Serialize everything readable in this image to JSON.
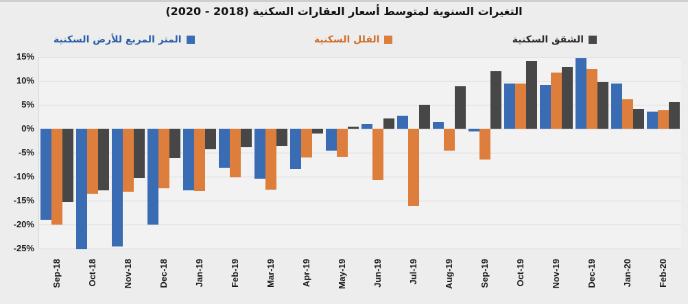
{
  "title": "التغيرات السنوية لمتوسط أسعار العقارات السكنية (2018 - 2020)",
  "legend": [
    {
      "label": "المتر المربع للأرض السكنية",
      "color": "#3A6CB4",
      "text_color": "#2B5FA8"
    },
    {
      "label": "الفلل السكنية",
      "color": "#DD7E3D",
      "text_color": "#D06F2A"
    },
    {
      "label": "الشقق السكنية",
      "color": "#474747",
      "text_color": "#2E2E2E"
    }
  ],
  "chart_data": {
    "type": "bar",
    "title": "التغيرات السنوية لمتوسط أسعار العقارات السكنية (2018 - 2020)",
    "categories": [
      "Sep-18",
      "Oct-18",
      "Nov-18",
      "Dec-18",
      "Jan-19",
      "Feb-19",
      "Mar-19",
      "Apr-19",
      "May-19",
      "Jun-19",
      "Jul-19",
      "Aug-19",
      "Sep-19",
      "Oct-19",
      "Nov-19",
      "Dec-19",
      "Jan-20",
      "Feb-20"
    ],
    "series": [
      {
        "name": "المتر المربع للأرض السكنية",
        "color": "#3A6CB4",
        "values": [
          -19.0,
          -25.2,
          -24.5,
          -20.0,
          -12.9,
          -8.1,
          -10.4,
          -8.4,
          -4.6,
          1.0,
          2.7,
          1.4,
          -0.6,
          9.4,
          9.1,
          14.7,
          9.4,
          3.6
        ]
      },
      {
        "name": "الفلل السكنية",
        "color": "#DD7E3D",
        "values": [
          -20.0,
          -13.6,
          -13.1,
          -12.4,
          -13.0,
          -10.1,
          -12.7,
          -6.0,
          -5.8,
          -10.7,
          -16.2,
          -4.6,
          -6.4,
          9.5,
          11.7,
          12.4,
          6.1,
          3.8
        ]
      },
      {
        "name": "الشقق السكنية",
        "color": "#474747",
        "values": [
          -15.3,
          -12.9,
          -10.3,
          -6.1,
          -4.3,
          -3.9,
          -3.6,
          -1.0,
          0.4,
          2.1,
          5.0,
          8.8,
          12.0,
          14.2,
          12.8,
          9.7,
          4.2,
          5.6
        ]
      }
    ],
    "ylim": [
      -25,
      15
    ],
    "ytick_step": 5,
    "ytick_labels": [
      "15%",
      "10%",
      "5%",
      "0%",
      "-5%",
      "-10%",
      "-15%",
      "-20%",
      "-25%"
    ],
    "xlabel": "",
    "ylabel": "",
    "grid": true,
    "legend_position": "top"
  }
}
